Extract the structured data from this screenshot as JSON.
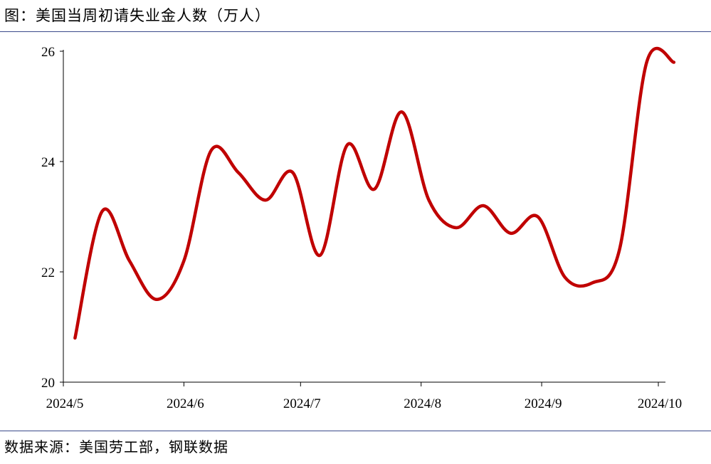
{
  "title": "图：美国当周初请失业金人数（万人）",
  "source": "数据来源：美国劳工部，钢联数据",
  "colors": {
    "line": "#c00000",
    "rule": "#3b4a8a",
    "axis": "#000000"
  },
  "chart_data": {
    "type": "line",
    "title": "图：美国当周初请失业金人数（万人）",
    "xlabel": "",
    "ylabel": "",
    "ylim": [
      20,
      26
    ],
    "yticks": [
      20,
      22,
      24,
      26
    ],
    "grid": false,
    "x_tick_labels": [
      "2024/5",
      "2024/6",
      "2024/7",
      "2024/8",
      "2024/9",
      "2024/10"
    ],
    "series": [
      {
        "x": [
          "2024-05-04",
          "2024-05-11",
          "2024-05-18",
          "2024-05-25",
          "2024-06-01",
          "2024-06-08",
          "2024-06-15",
          "2024-06-22",
          "2024-06-29",
          "2024-07-06",
          "2024-07-13",
          "2024-07-20",
          "2024-07-27",
          "2024-08-03",
          "2024-08-10",
          "2024-08-17",
          "2024-08-24",
          "2024-08-31",
          "2024-09-07",
          "2024-09-14",
          "2024-09-21",
          "2024-09-28",
          "2024-10-05"
        ],
        "values": [
          20.8,
          23.1,
          22.2,
          21.5,
          22.2,
          24.2,
          23.8,
          23.3,
          23.8,
          22.3,
          24.3,
          23.5,
          24.9,
          23.3,
          22.8,
          23.2,
          22.7,
          23.0,
          21.9,
          21.8,
          22.4,
          25.8,
          25.8
        ]
      }
    ]
  }
}
